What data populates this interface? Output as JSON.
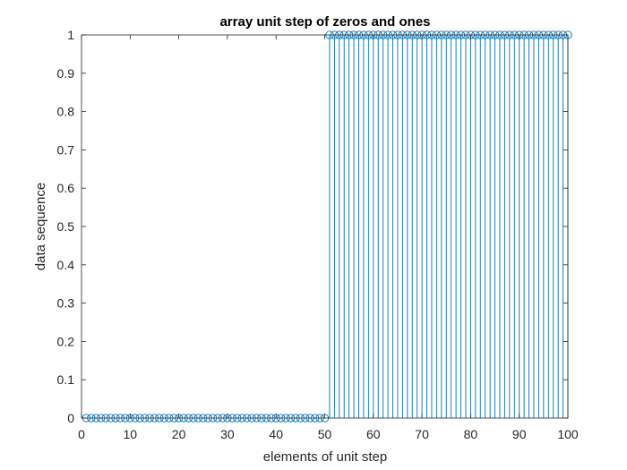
{
  "chart_data": {
    "type": "stem",
    "title": "array unit step of zeros and ones",
    "xlabel": "elements of unit step",
    "ylabel": "data sequence",
    "xlim": [
      0,
      100
    ],
    "ylim": [
      0,
      1
    ],
    "xticks": [
      "0",
      "10",
      "20",
      "30",
      "40",
      "50",
      "60",
      "70",
      "80",
      "90",
      "100"
    ],
    "yticks": [
      "0",
      "0.1",
      "0.2",
      "0.3",
      "0.4",
      "0.5",
      "0.6",
      "0.7",
      "0.8",
      "0.9",
      "1"
    ],
    "grid": false,
    "x": [
      1,
      2,
      3,
      4,
      5,
      6,
      7,
      8,
      9,
      10,
      11,
      12,
      13,
      14,
      15,
      16,
      17,
      18,
      19,
      20,
      21,
      22,
      23,
      24,
      25,
      26,
      27,
      28,
      29,
      30,
      31,
      32,
      33,
      34,
      35,
      36,
      37,
      38,
      39,
      40,
      41,
      42,
      43,
      44,
      45,
      46,
      47,
      48,
      49,
      50,
      51,
      52,
      53,
      54,
      55,
      56,
      57,
      58,
      59,
      60,
      61,
      62,
      63,
      64,
      65,
      66,
      67,
      68,
      69,
      70,
      71,
      72,
      73,
      74,
      75,
      76,
      77,
      78,
      79,
      80,
      81,
      82,
      83,
      84,
      85,
      86,
      87,
      88,
      89,
      90,
      91,
      92,
      93,
      94,
      95,
      96,
      97,
      98,
      99,
      100
    ],
    "values": [
      0,
      0,
      0,
      0,
      0,
      0,
      0,
      0,
      0,
      0,
      0,
      0,
      0,
      0,
      0,
      0,
      0,
      0,
      0,
      0,
      0,
      0,
      0,
      0,
      0,
      0,
      0,
      0,
      0,
      0,
      0,
      0,
      0,
      0,
      0,
      0,
      0,
      0,
      0,
      0,
      0,
      0,
      0,
      0,
      0,
      0,
      0,
      0,
      0,
      0,
      1,
      1,
      1,
      1,
      1,
      1,
      1,
      1,
      1,
      1,
      1,
      1,
      1,
      1,
      1,
      1,
      1,
      1,
      1,
      1,
      1,
      1,
      1,
      1,
      1,
      1,
      1,
      1,
      1,
      1,
      1,
      1,
      1,
      1,
      1,
      1,
      1,
      1,
      1,
      1,
      1,
      1,
      1,
      1,
      1,
      1,
      1,
      1,
      1,
      1
    ],
    "series_color": "#0072BD"
  }
}
